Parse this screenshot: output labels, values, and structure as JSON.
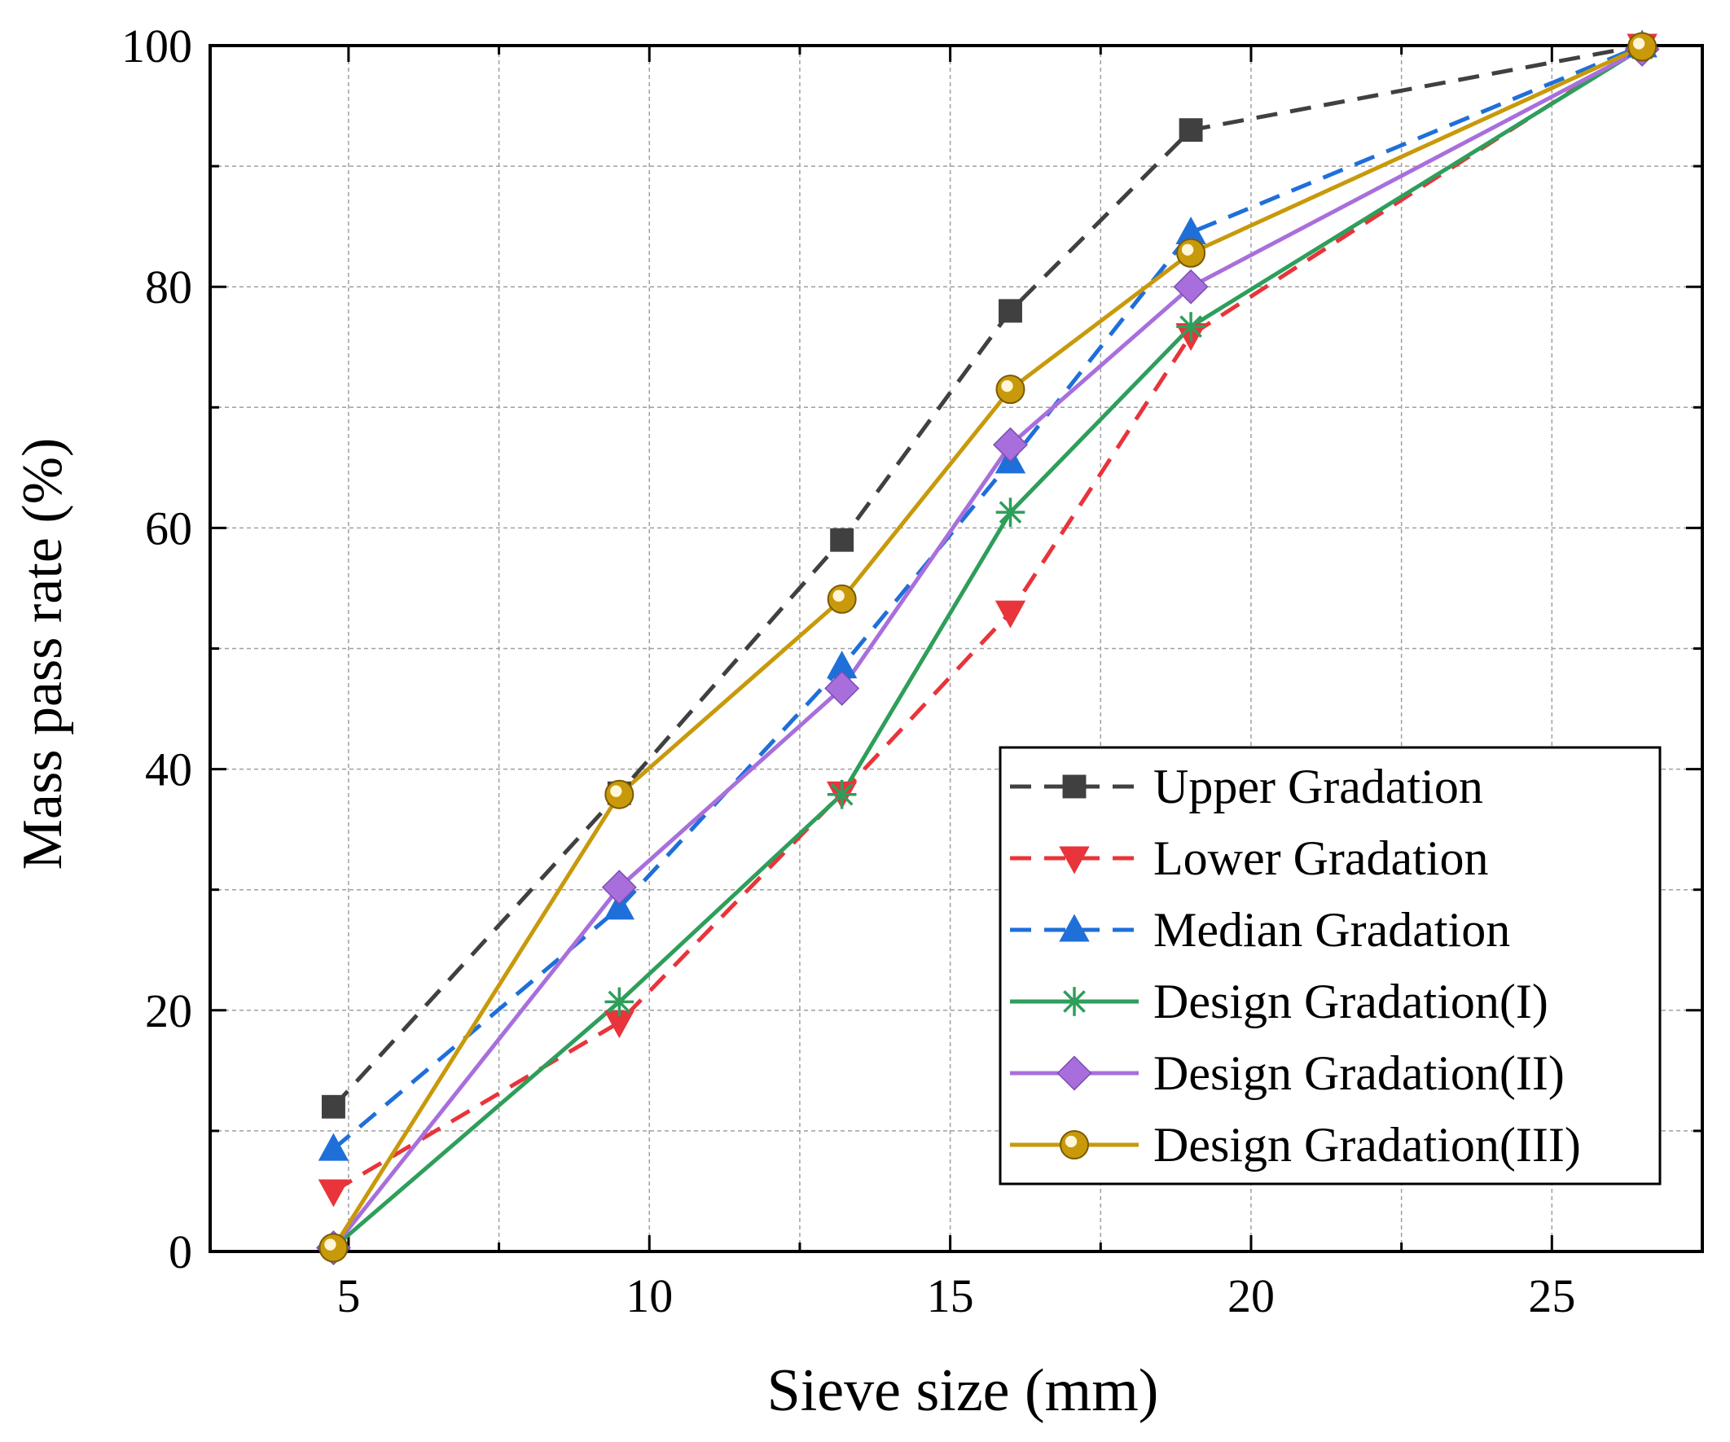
{
  "chart_data": {
    "type": "line",
    "xlabel": "Sieve size (mm)",
    "ylabel": "Mass pass rate (%)",
    "xlim": [
      2.7,
      27.5
    ],
    "ylim": [
      0,
      100
    ],
    "x_ticks": [
      5,
      10,
      15,
      20,
      25
    ],
    "y_ticks": [
      0,
      20,
      40,
      60,
      80,
      100
    ],
    "grid": true,
    "legend_position": "bottom-right",
    "x": [
      4.75,
      9.5,
      13.2,
      16,
      19,
      26.5
    ],
    "series": [
      {
        "name": "Upper Gradation",
        "values": [
          12,
          38,
          59,
          78,
          93,
          100
        ],
        "color": "#404040",
        "dash": "dashed",
        "marker": "square"
      },
      {
        "name": "Lower Gradation",
        "values": [
          5,
          19,
          38,
          53,
          76,
          100
        ],
        "color": "#e8343a",
        "dash": "dashed",
        "marker": "triangle-down"
      },
      {
        "name": "Median Gradation",
        "values": [
          8.5,
          28.5,
          48.5,
          65.5,
          84.5,
          100
        ],
        "color": "#1f6fd9",
        "dash": "dashed",
        "marker": "triangle-up"
      },
      {
        "name": "Design Gradation(I)",
        "values": [
          0.3,
          20.7,
          37.9,
          61.3,
          76.7,
          99.8
        ],
        "color": "#2e9e5b",
        "dash": "solid",
        "marker": "asterisk"
      },
      {
        "name": "Design Gradation(II)",
        "values": [
          0.3,
          30.2,
          46.7,
          66.9,
          80,
          99.7
        ],
        "color": "#a86fdc",
        "dash": "solid",
        "marker": "diamond"
      },
      {
        "name": "Design Gradation(III)",
        "values": [
          0.3,
          37.9,
          54.1,
          71.5,
          82.8,
          99.9
        ],
        "color": "#c8990a",
        "dash": "solid",
        "marker": "circle"
      }
    ]
  }
}
